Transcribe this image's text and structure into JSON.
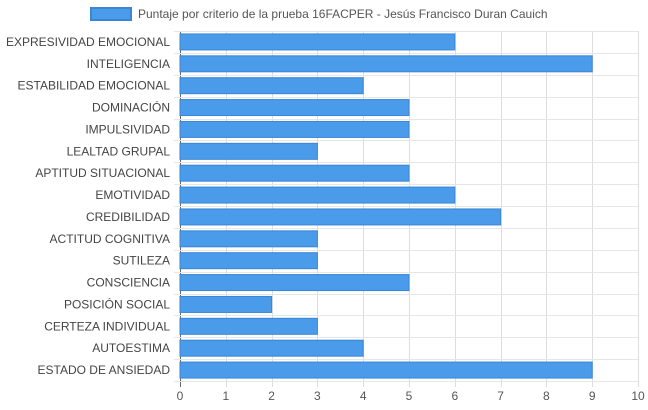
{
  "chart_data": {
    "type": "bar",
    "orientation": "horizontal",
    "categories": [
      "EXPRESIVIDAD EMOCIONAL",
      "INTELIGENCIA",
      "ESTABILIDAD EMOCIONAL",
      "DOMINACIÓN",
      "IMPULSIVIDAD",
      "LEALTAD GRUPAL",
      "APTITUD SITUACIONAL",
      "EMOTIVIDAD",
      "CREDIBILIDAD",
      "ACTITUD COGNITIVA",
      "SUTILEZA",
      "CONSCIENCIA",
      "POSICIÓN SOCIAL",
      "CERTEZA INDIVIDUAL",
      "AUTOESTIMA",
      "ESTADO DE ANSIEDAD"
    ],
    "series": [
      {
        "name": "Puntaje por criterio de la prueba 16FACPER - Jesús Francisco Duran Cauich",
        "values": [
          6,
          9,
          4,
          5,
          5,
          3,
          5,
          6,
          7,
          3,
          3,
          5,
          2,
          3,
          4,
          9
        ],
        "color": "#4a9bea"
      }
    ],
    "xlim": [
      0,
      10
    ],
    "xticks": [
      "0",
      "1",
      "2",
      "3",
      "4",
      "5",
      "6",
      "7",
      "8",
      "9",
      "10"
    ],
    "grid": true,
    "legend_position": "top"
  }
}
